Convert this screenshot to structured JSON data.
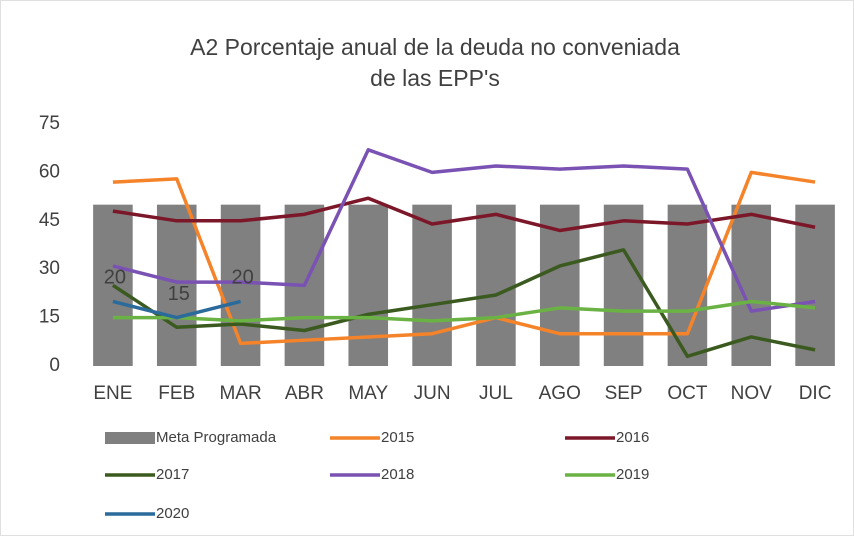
{
  "chart_data": {
    "type": "bar",
    "title": [
      "A2 Porcentaje anual de la deuda no conveniada",
      "de las EPP's"
    ],
    "categories": [
      "ENE",
      "FEB",
      "MAR",
      "ABR",
      "MAY",
      "JUN",
      "JUL",
      "AGO",
      "SEP",
      "OCT",
      "NOV",
      "DIC"
    ],
    "ylim": [
      0,
      75
    ],
    "yticks": [
      0,
      15,
      30,
      45,
      60,
      75
    ],
    "legend": "bottom",
    "series": [
      {
        "name": "Meta Programada",
        "type": "bar",
        "color": "#808080",
        "values": [
          50,
          50,
          50,
          50,
          50,
          50,
          50,
          50,
          50,
          50,
          50,
          50
        ]
      },
      {
        "name": "2015",
        "type": "line",
        "color": "#f4832a",
        "values": [
          57,
          58,
          7,
          8,
          9,
          10,
          15,
          10,
          10,
          10,
          60,
          57
        ]
      },
      {
        "name": "2016",
        "type": "line",
        "color": "#7b1728",
        "values": [
          48,
          45,
          45,
          47,
          52,
          44,
          47,
          42,
          45,
          44,
          47,
          43
        ]
      },
      {
        "name": "2017",
        "type": "line",
        "color": "#3b5a1f",
        "values": [
          25,
          12,
          13,
          11,
          16,
          19,
          22,
          31,
          36,
          3,
          9,
          5
        ]
      },
      {
        "name": "2018",
        "type": "line",
        "color": "#7a52b3",
        "values": [
          31,
          26,
          26,
          25,
          67,
          60,
          62,
          61,
          62,
          61,
          17,
          20
        ]
      },
      {
        "name": "2019",
        "type": "line",
        "color": "#6bb244",
        "values": [
          15,
          15,
          14,
          15,
          15,
          14,
          15,
          18,
          17,
          17,
          20,
          18
        ]
      },
      {
        "name": "2020",
        "type": "line",
        "color": "#2a6b9c",
        "data_labels": true,
        "values": [
          20,
          15,
          20,
          null,
          null,
          null,
          null,
          null,
          null,
          null,
          null,
          null
        ]
      }
    ]
  }
}
